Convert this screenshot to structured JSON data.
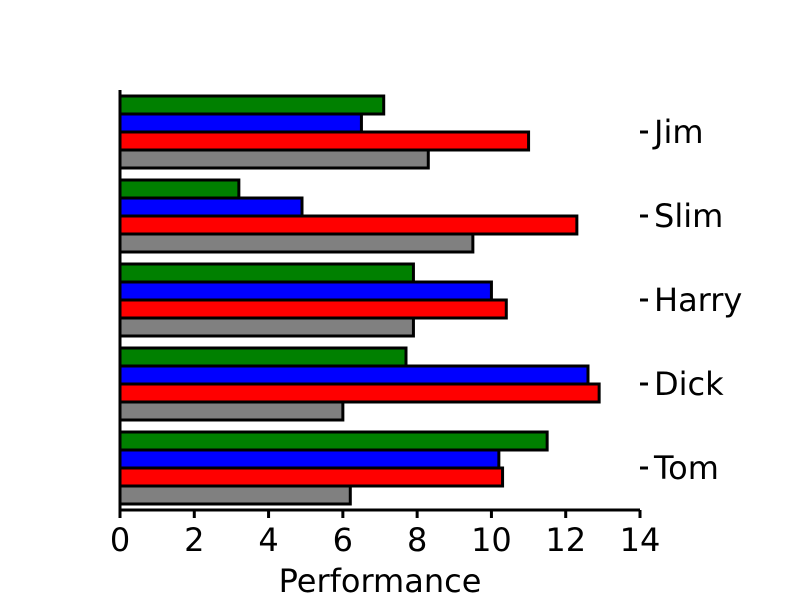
{
  "chart_data": {
    "type": "bar",
    "orientation": "horizontal",
    "title": "",
    "xlabel": "Performance",
    "ylabel": "",
    "xlim": [
      0,
      14
    ],
    "xticks": [
      0,
      2,
      4,
      6,
      8,
      10,
      12,
      14
    ],
    "category_axis_side": "right",
    "grid": false,
    "legend": "none",
    "categories": [
      "Tom",
      "Dick",
      "Harry",
      "Slim",
      "Jim"
    ],
    "series": [
      {
        "color": "#808080",
        "values": [
          6.2,
          6.0,
          7.9,
          9.5,
          8.3
        ]
      },
      {
        "color": "#ff0000",
        "values": [
          10.3,
          12.9,
          10.4,
          12.3,
          11.0
        ]
      },
      {
        "color": "#0000ff",
        "values": [
          10.2,
          12.6,
          10.0,
          4.9,
          6.5
        ]
      },
      {
        "color": "#008000",
        "values": [
          11.5,
          7.7,
          7.9,
          3.2,
          7.1
        ]
      }
    ]
  }
}
